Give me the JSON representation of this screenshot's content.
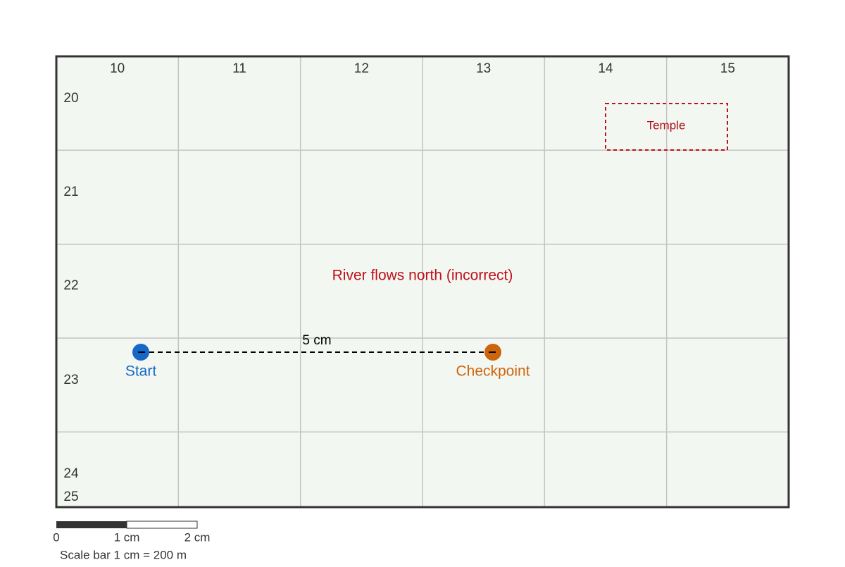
{
  "grid": {
    "columns": [
      "10",
      "11",
      "12",
      "13",
      "14",
      "15"
    ],
    "rows": [
      "20",
      "21",
      "22",
      "23",
      "24",
      "25"
    ]
  },
  "features": {
    "temple": {
      "label": "Temple"
    },
    "river": {
      "label": "River flows north (incorrect)"
    },
    "start": {
      "label": "Start"
    },
    "checkpoint": {
      "label": "Checkpoint"
    },
    "distance": {
      "label": "5 cm"
    }
  },
  "scale_bar": {
    "ticks": [
      "0",
      "1 cm",
      "2 cm"
    ],
    "caption": "Scale bar 1 cm = 200 m"
  }
}
